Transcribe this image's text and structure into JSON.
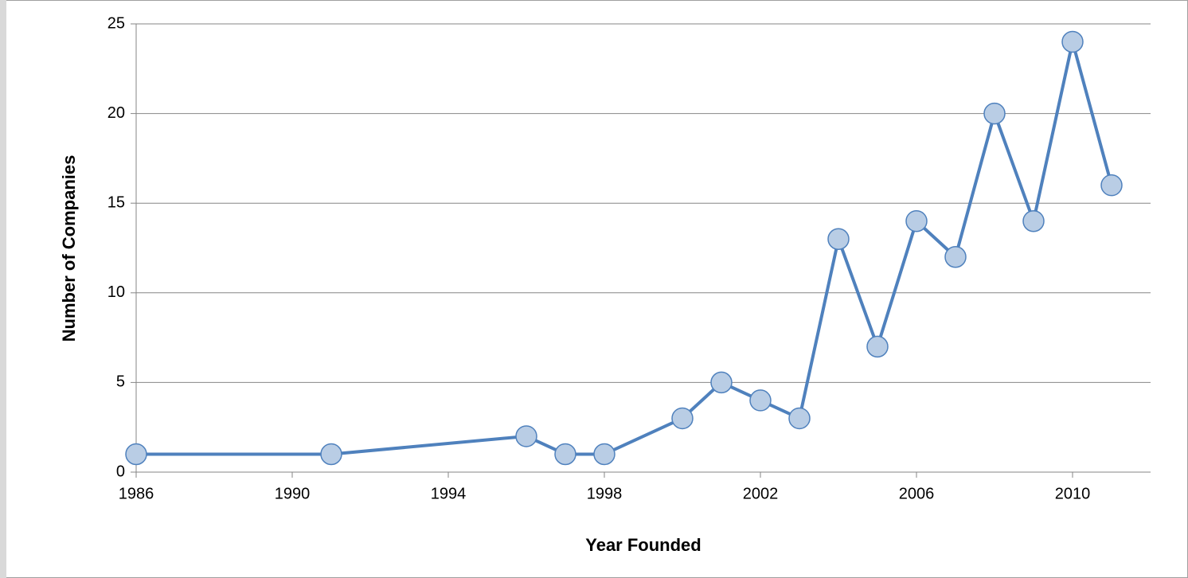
{
  "chart_data": {
    "type": "line",
    "x": [
      1986,
      1991,
      1996,
      1997,
      1998,
      2000,
      2001,
      2002,
      2003,
      2004,
      2005,
      2006,
      2007,
      2008,
      2009,
      2010,
      2011
    ],
    "values": [
      1,
      1,
      2,
      1,
      1,
      3,
      5,
      4,
      3,
      13,
      7,
      14,
      12,
      20,
      14,
      24,
      16
    ],
    "color": "#4f81bd",
    "marker_color": "#b9cde5",
    "xlabel": "Year Founded",
    "ylabel": "Number of Companies",
    "xlim": [
      1986,
      2012
    ],
    "xticks": [
      1986,
      1990,
      1994,
      1998,
      2002,
      2006,
      2010
    ],
    "ylim": [
      0,
      25
    ],
    "yticks": [
      0,
      5,
      10,
      15,
      20,
      25
    ],
    "grid": true
  }
}
